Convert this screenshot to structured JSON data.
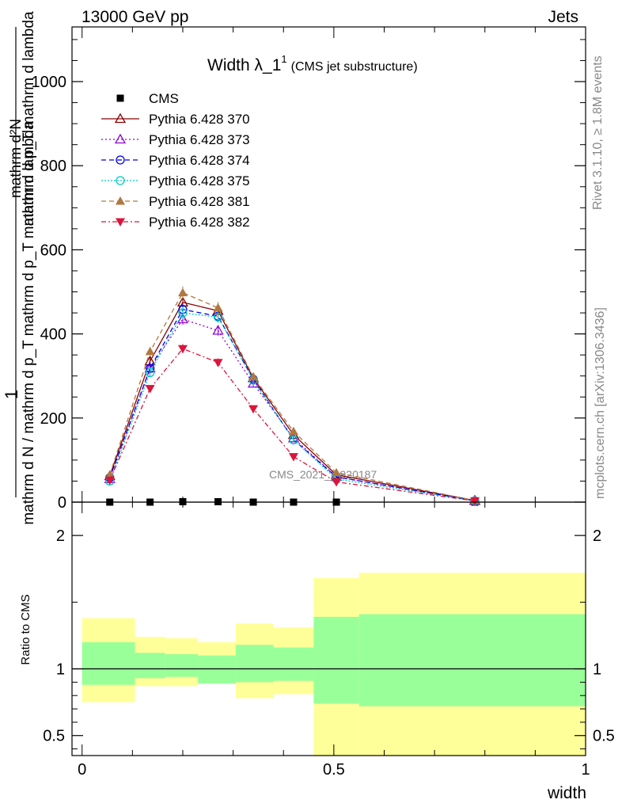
{
  "header": {
    "left": "13000 GeV pp",
    "right": "Jets"
  },
  "side_labels": {
    "rivet": "Rivet 3.1.10, ≥ 1.8M events",
    "mcplots": "mcplots.cern.ch [arXiv:1306.3436]"
  },
  "watermark": "CMS_2021_I1920187",
  "chart_data": [
    {
      "type": "line",
      "title_main": "Width λ_1",
      "title_sup": "1",
      "title_sub": "(CMS jet substructure)",
      "ylabel_top": "1",
      "ylabel_bottom": "mathrm d N / mathrm d p_T mathrm d p_T mathrm d lambda",
      "ylabel_numerator": "mathrm d²N",
      "ylabel_denominator": "mathrm d p_T mathrm d lambda",
      "xlim": [
        -0.02,
        1.0
      ],
      "ylim": [
        0,
        1130
      ],
      "yticks": [
        0,
        200,
        400,
        600,
        800,
        1000
      ],
      "ytick_labels": [
        "0",
        "200",
        "400",
        "600",
        "800",
        "1000"
      ],
      "series": [
        {
          "name": "CMS",
          "color": "#000000",
          "marker": "square",
          "dash": "none",
          "x": [
            0.055,
            0.135,
            0.2,
            0.27,
            0.34,
            0.42,
            0.505,
            0.78
          ],
          "y": [
            0,
            0,
            1,
            1,
            0,
            0,
            0,
            0
          ]
        },
        {
          "name": "Pythia 6.428 370",
          "color": "#8b0000",
          "marker": "triangle-open",
          "dash": "none",
          "x": [
            0.055,
            0.135,
            0.2,
            0.27,
            0.34,
            0.42,
            0.505,
            0.78
          ],
          "y": [
            62,
            335,
            475,
            455,
            295,
            160,
            65,
            4
          ]
        },
        {
          "name": "Pythia 6.428 373",
          "color": "#9400d3",
          "marker": "triangle-open",
          "dash": "2,3",
          "x": [
            0.055,
            0.135,
            0.2,
            0.27,
            0.34,
            0.42,
            0.505,
            0.78
          ],
          "y": [
            55,
            318,
            435,
            408,
            282,
            152,
            60,
            3
          ]
        },
        {
          "name": "Pythia 6.428 374",
          "color": "#0000dd",
          "marker": "circle-open",
          "dash": "6,4",
          "x": [
            0.055,
            0.135,
            0.2,
            0.27,
            0.34,
            0.42,
            0.505,
            0.78
          ],
          "y": [
            58,
            318,
            458,
            442,
            292,
            148,
            60,
            3
          ]
        },
        {
          "name": "Pythia 6.428 375",
          "color": "#00c8c8",
          "marker": "circle-open",
          "dash": "2,2",
          "x": [
            0.055,
            0.135,
            0.2,
            0.27,
            0.34,
            0.42,
            0.505,
            0.78
          ],
          "y": [
            50,
            308,
            450,
            440,
            290,
            148,
            55,
            3
          ]
        },
        {
          "name": "Pythia 6.428 381",
          "color": "#b07840",
          "marker": "triangle-filled",
          "dash": "6,4",
          "x": [
            0.055,
            0.135,
            0.2,
            0.27,
            0.34,
            0.42,
            0.505,
            0.78
          ],
          "y": [
            65,
            358,
            498,
            462,
            298,
            168,
            70,
            4
          ]
        },
        {
          "name": "Pythia 6.428 382",
          "color": "#dc143c",
          "marker": "triangle-down-filled",
          "dash": "6,3,2,3",
          "x": [
            0.055,
            0.135,
            0.2,
            0.27,
            0.34,
            0.42,
            0.505,
            0.78
          ],
          "y": [
            52,
            270,
            365,
            332,
            222,
            108,
            48,
            3
          ]
        }
      ]
    },
    {
      "type": "area",
      "ylabel": "Ratio to CMS",
      "xlabel": "width",
      "xlim": [
        -0.02,
        1.0
      ],
      "ylim": [
        0.35,
        2.25
      ],
      "xticks": [
        0,
        0.5,
        1
      ],
      "xtick_labels": [
        "0",
        "0.5",
        "1"
      ],
      "yticks": [
        0.5,
        1,
        2
      ],
      "ytick_labels": [
        "0.5",
        "1",
        "2"
      ],
      "bins": [
        {
          "x0": 0.0,
          "x1": 0.105,
          "inner": [
            0.88,
            1.2
          ],
          "outer": [
            0.75,
            1.38
          ]
        },
        {
          "x0": 0.105,
          "x1": 0.165,
          "inner": [
            0.93,
            1.12
          ],
          "outer": [
            0.87,
            1.24
          ]
        },
        {
          "x0": 0.165,
          "x1": 0.23,
          "inner": [
            0.94,
            1.11
          ],
          "outer": [
            0.87,
            1.23
          ]
        },
        {
          "x0": 0.23,
          "x1": 0.305,
          "inner": [
            0.89,
            1.1
          ],
          "outer": [
            0.89,
            1.2
          ]
        },
        {
          "x0": 0.305,
          "x1": 0.38,
          "inner": [
            0.9,
            1.18
          ],
          "outer": [
            0.78,
            1.34
          ]
        },
        {
          "x0": 0.38,
          "x1": 0.46,
          "inner": [
            0.91,
            1.16
          ],
          "outer": [
            0.81,
            1.31
          ]
        },
        {
          "x0": 0.46,
          "x1": 0.55,
          "inner": [
            0.74,
            1.39
          ],
          "outer": [
            0.35,
            1.68
          ]
        },
        {
          "x0": 0.55,
          "x1": 1.0,
          "inner": [
            0.72,
            1.41
          ],
          "outer": [
            0.35,
            1.72
          ]
        }
      ],
      "colors": {
        "inner": "#99ff99",
        "outer": "#ffff99"
      }
    }
  ]
}
